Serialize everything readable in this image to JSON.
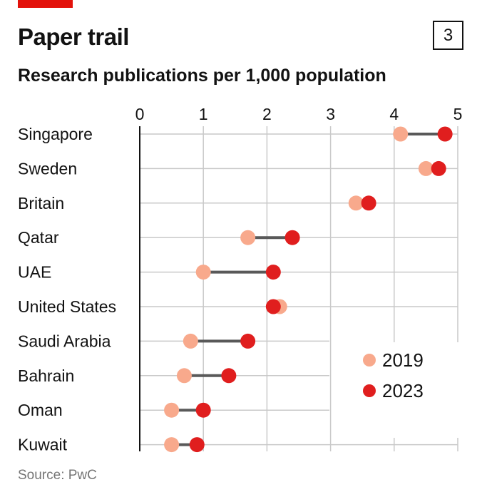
{
  "header": {
    "title": "Paper trail",
    "chart_number": "3",
    "subtitle": "Research publications per 1,000 population"
  },
  "footer": {
    "source": "Source: PwC"
  },
  "colors": {
    "accent_bar": "#e3120b",
    "series_2019": "#f8a98c",
    "series_2023": "#e01e1e",
    "connector": "#595959",
    "grid": "#c9c9c9",
    "axis": "#121212"
  },
  "chart_data": {
    "type": "dot-plot",
    "categories": [
      "Singapore",
      "Sweden",
      "Britain",
      "Qatar",
      "UAE",
      "United States",
      "Saudi Arabia",
      "Bahrain",
      "Oman",
      "Kuwait"
    ],
    "series": [
      {
        "name": "2019",
        "values": [
          4.1,
          4.5,
          3.4,
          1.7,
          1.0,
          2.2,
          0.8,
          0.7,
          0.5,
          0.5
        ]
      },
      {
        "name": "2023",
        "values": [
          4.8,
          4.7,
          3.6,
          2.4,
          2.1,
          2.1,
          1.7,
          1.4,
          1.0,
          0.9
        ]
      }
    ],
    "xlim": [
      0,
      5
    ],
    "xticks": [
      "0",
      "1",
      "2",
      "3",
      "4",
      "5"
    ],
    "xaxis_position": "top",
    "grid": true,
    "legend_position": "bottom-right"
  }
}
